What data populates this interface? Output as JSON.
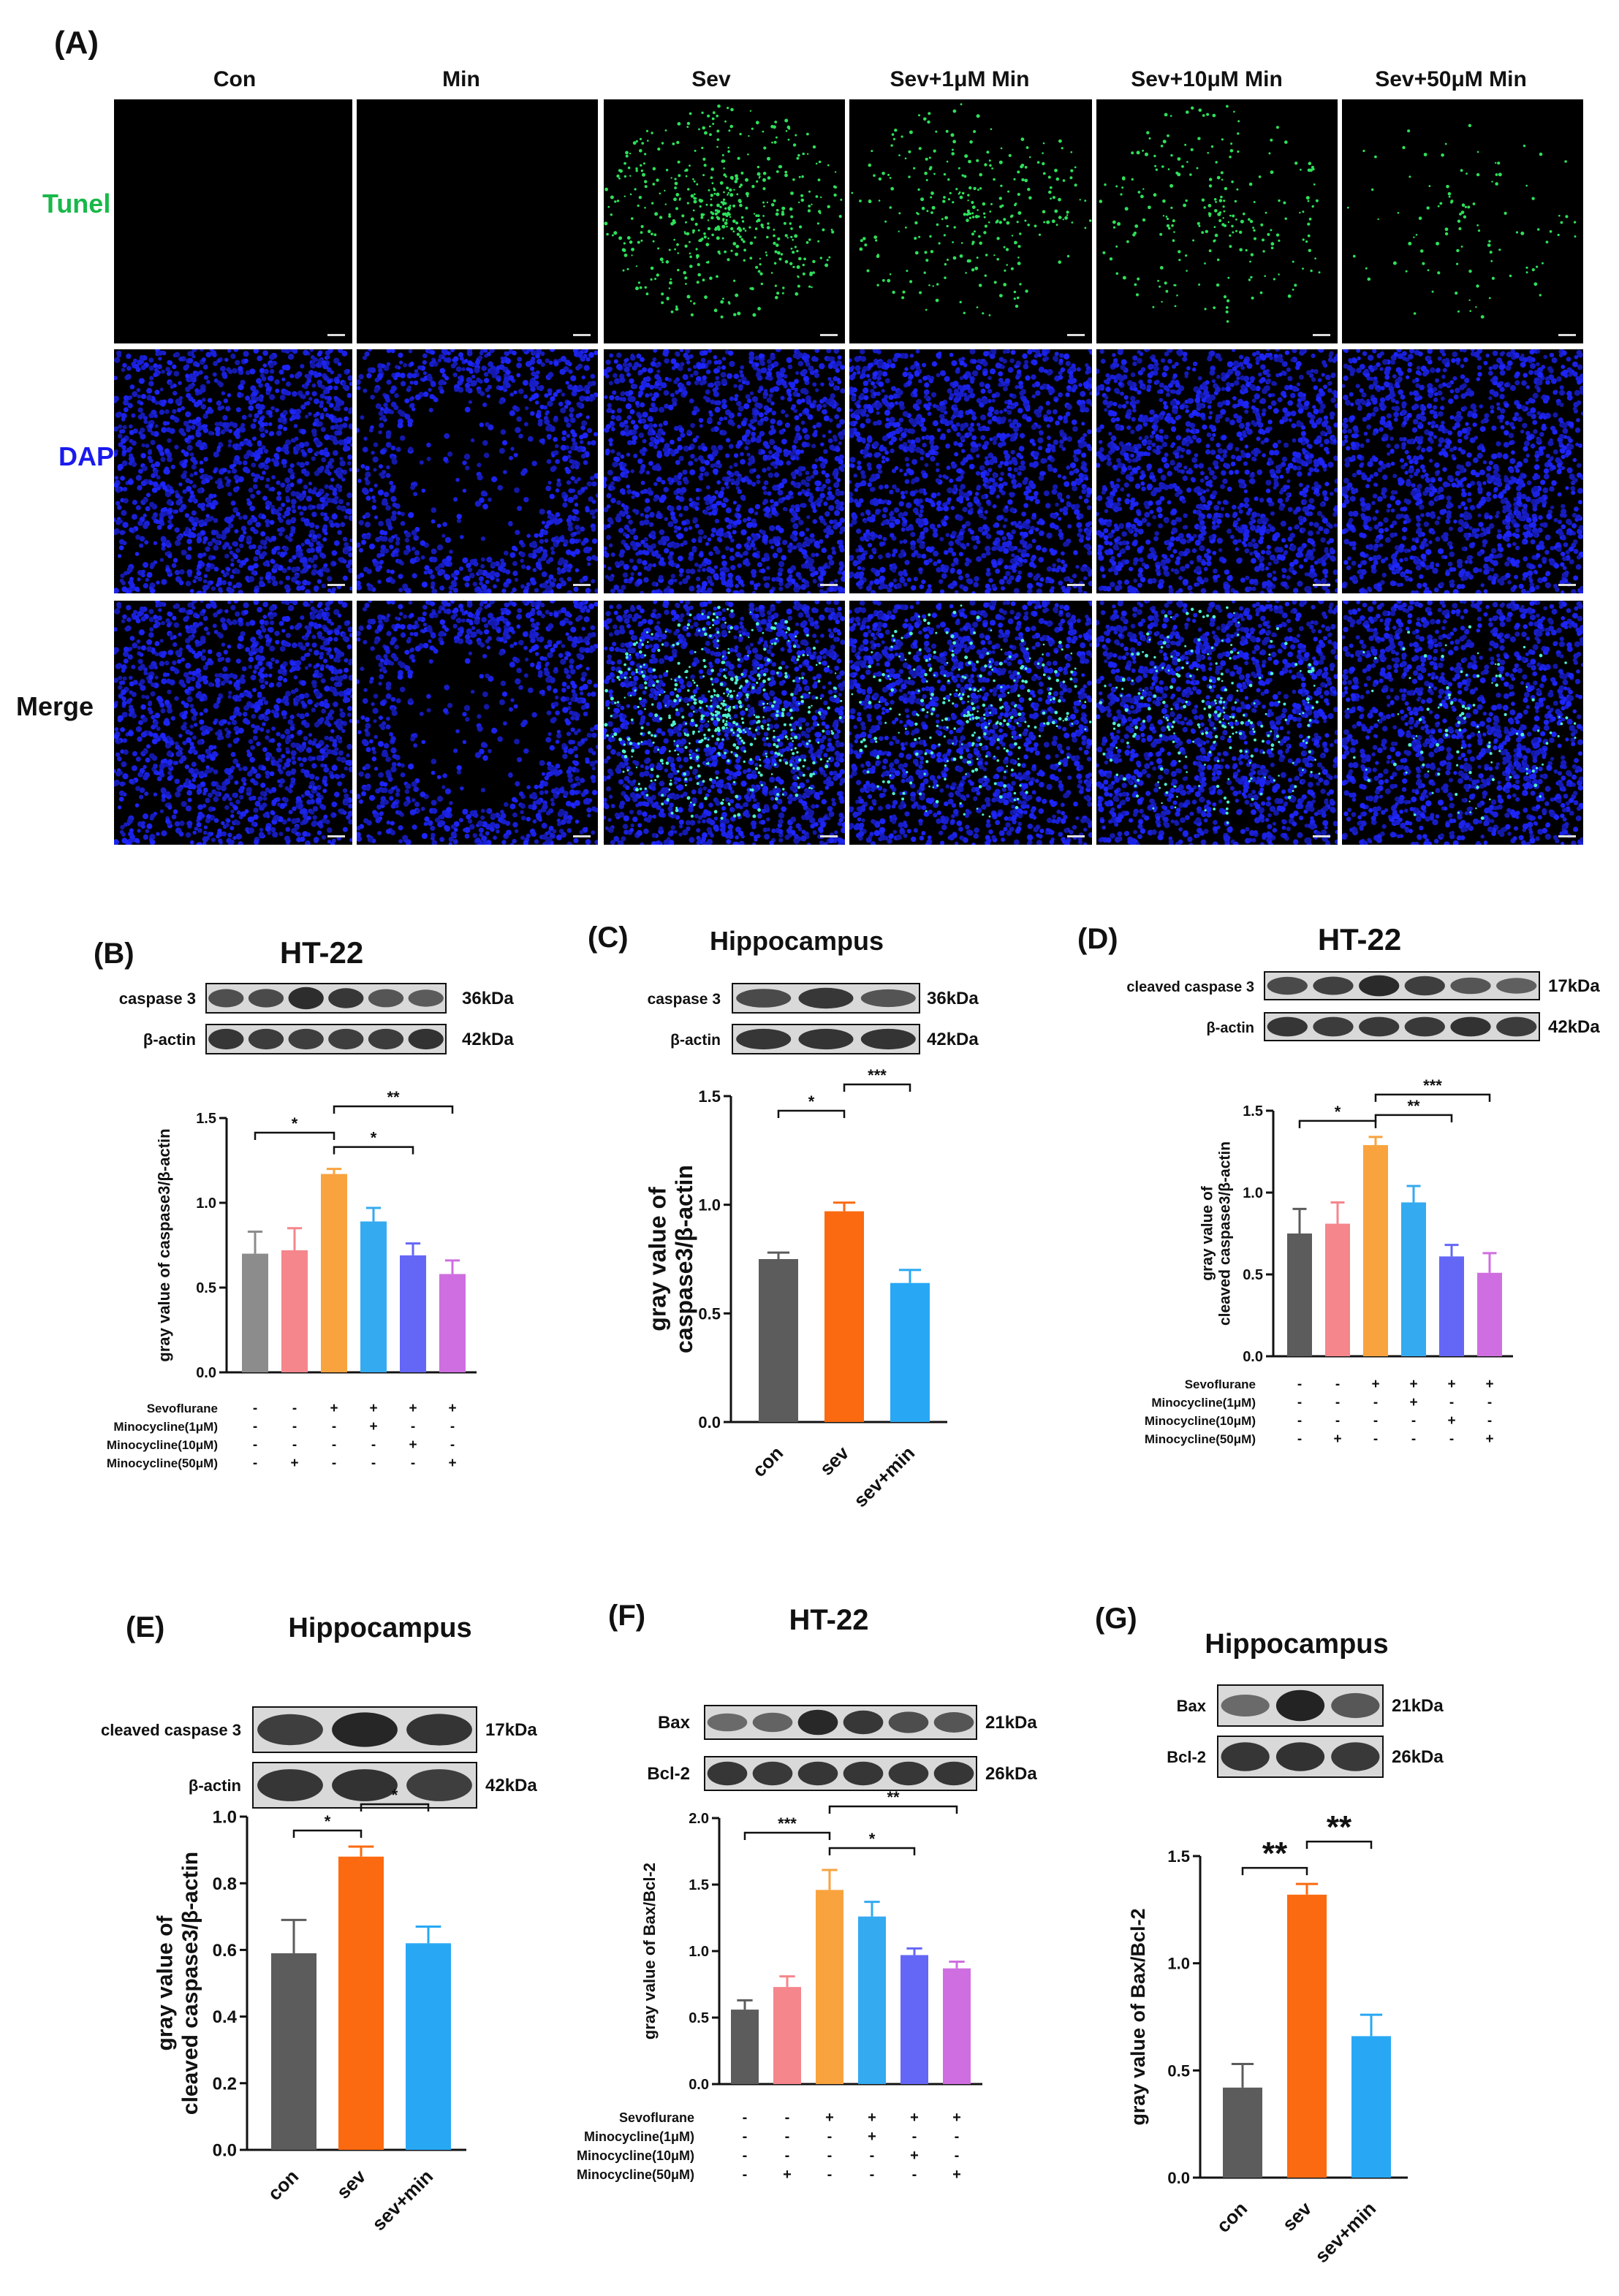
{
  "panel_A": {
    "letter": "(A)",
    "columns": [
      "Con",
      "Min",
      "Sev",
      "Sev+1μM Min",
      "Sev+10μM Min",
      "Sev+50μM Min"
    ],
    "rows": [
      {
        "label": "Tunel",
        "color": "#19b84a"
      },
      {
        "label": "DAPI",
        "color": "#1a1aee"
      },
      {
        "label": "Merge",
        "color": "#111111"
      }
    ],
    "tunel_density": [
      0,
      0,
      1.0,
      0.55,
      0.45,
      0.2
    ]
  },
  "chart_data": [
    {
      "id": "B",
      "type": "bar",
      "letter": "(B)",
      "title": "HT-22",
      "blot_rows": [
        {
          "label": "caspase 3",
          "kda": "36kDa"
        },
        {
          "label": "β-actin",
          "kda": "42kDa"
        }
      ],
      "ylabel": "gray value of caspase3/β-actin",
      "ylim": [
        0,
        1.5
      ],
      "yticks": [
        "0.0",
        "0.5",
        "1.0",
        "1.5"
      ],
      "values": [
        0.7,
        0.72,
        1.17,
        0.89,
        0.69,
        0.58
      ],
      "errors": [
        0.13,
        0.13,
        0.03,
        0.08,
        0.07,
        0.08
      ],
      "colors": [
        "#8c8c8c",
        "#f4868c",
        "#f8a33e",
        "#34aaf0",
        "#6467f6",
        "#cf6ee0"
      ],
      "sig": [
        {
          "from": 0,
          "to": 2,
          "label": "*"
        },
        {
          "from": 2,
          "to": 5,
          "label": "**"
        },
        {
          "from": 2,
          "to": 4,
          "label": "*"
        }
      ],
      "treatment_rows": [
        {
          "label": "Sevoflurane",
          "marks": [
            "-",
            "-",
            "+",
            "+",
            "+",
            "+"
          ]
        },
        {
          "label": "Minocycline(1μM)",
          "marks": [
            "-",
            "-",
            "-",
            "+",
            "-",
            "-"
          ]
        },
        {
          "label": "Minocycline(10μM)",
          "marks": [
            "-",
            "-",
            "-",
            "-",
            "+",
            "-"
          ]
        },
        {
          "label": "Minocycline(50μM)",
          "marks": [
            "-",
            "+",
            "-",
            "-",
            "-",
            "+"
          ]
        }
      ]
    },
    {
      "id": "C",
      "type": "bar",
      "letter": "(C)",
      "title": "Hippocampus",
      "blot_rows": [
        {
          "label": "caspase 3",
          "kda": "36kDa"
        },
        {
          "label": "β-actin",
          "kda": "42kDa"
        }
      ],
      "ylabel_lines": [
        "gray value of",
        "caspase3/β-actin"
      ],
      "ylim": [
        0,
        1.5
      ],
      "yticks": [
        "0.0",
        "0.5",
        "1.0",
        "1.5"
      ],
      "categories": [
        "con",
        "sev",
        "sev+min"
      ],
      "values": [
        0.75,
        0.97,
        0.64
      ],
      "errors": [
        0.03,
        0.04,
        0.06
      ],
      "colors": [
        "#5c5c5c",
        "#fb6a10",
        "#28a8f4"
      ],
      "sig": [
        {
          "from": 0,
          "to": 1,
          "label": "*"
        },
        {
          "from": 1,
          "to": 2,
          "label": "***"
        }
      ]
    },
    {
      "id": "D",
      "type": "bar",
      "letter": "(D)",
      "title": "HT-22",
      "blot_rows": [
        {
          "label": "cleaved caspase 3",
          "kda": "17kDa"
        },
        {
          "label": "β-actin",
          "kda": "42kDa"
        }
      ],
      "ylabel_lines": [
        "gray value of",
        "cleaved caspase3/β-actin"
      ],
      "ylim": [
        0,
        1.5
      ],
      "yticks": [
        "0.0",
        "0.5",
        "1.0",
        "1.5"
      ],
      "values": [
        0.75,
        0.81,
        1.29,
        0.94,
        0.61,
        0.51
      ],
      "errors": [
        0.15,
        0.13,
        0.05,
        0.1,
        0.07,
        0.12
      ],
      "colors": [
        "#5c5c5c",
        "#f4868c",
        "#f8a33e",
        "#34aaf0",
        "#6467f6",
        "#cf6ee0"
      ],
      "sig": [
        {
          "from": 0,
          "to": 2,
          "label": "*"
        },
        {
          "from": 2,
          "to": 5,
          "label": "***"
        },
        {
          "from": 2,
          "to": 4,
          "label": "**"
        }
      ],
      "treatment_rows": [
        {
          "label": "Sevoflurane",
          "marks": [
            "-",
            "-",
            "+",
            "+",
            "+",
            "+"
          ]
        },
        {
          "label": "Minocycline(1μM)",
          "marks": [
            "-",
            "-",
            "-",
            "+",
            "-",
            "-"
          ]
        },
        {
          "label": "Minocycline(10μM)",
          "marks": [
            "-",
            "-",
            "-",
            "-",
            "+",
            "-"
          ]
        },
        {
          "label": "Minocycline(50μM)",
          "marks": [
            "-",
            "+",
            "-",
            "-",
            "-",
            "+"
          ]
        }
      ]
    },
    {
      "id": "E",
      "type": "bar",
      "letter": "(E)",
      "title": "Hippocampus",
      "blot_rows": [
        {
          "label": "cleaved caspase 3",
          "kda": "17kDa"
        },
        {
          "label": "β-actin",
          "kda": "42kDa"
        }
      ],
      "ylabel_lines": [
        "gray value of",
        "cleaved caspase3/β-actin"
      ],
      "ylim": [
        0,
        1.0
      ],
      "yticks": [
        "0.0",
        "0.2",
        "0.4",
        "0.6",
        "0.8",
        "1.0"
      ],
      "categories": [
        "con",
        "sev",
        "sev+min"
      ],
      "values": [
        0.59,
        0.88,
        0.62
      ],
      "errors": [
        0.1,
        0.03,
        0.05
      ],
      "colors": [
        "#5c5c5c",
        "#fb6a10",
        "#28a8f4"
      ],
      "sig": [
        {
          "from": 0,
          "to": 1,
          "label": "*"
        },
        {
          "from": 1,
          "to": 2,
          "label": "*"
        }
      ]
    },
    {
      "id": "F",
      "type": "bar",
      "letter": "(F)",
      "title": "HT-22",
      "blot_rows": [
        {
          "label": "Bax",
          "kda": "21kDa"
        },
        {
          "label": "Bcl-2",
          "kda": "26kDa"
        }
      ],
      "ylabel": "gray value of Bax/Bcl-2",
      "ylim": [
        0,
        2.0
      ],
      "yticks": [
        "0.0",
        "0.5",
        "1.0",
        "1.5",
        "2.0"
      ],
      "values": [
        0.56,
        0.73,
        1.46,
        1.26,
        0.97,
        0.87
      ],
      "errors": [
        0.07,
        0.08,
        0.15,
        0.11,
        0.05,
        0.05
      ],
      "colors": [
        "#5c5c5c",
        "#f4868c",
        "#f8a33e",
        "#34aaf0",
        "#6467f6",
        "#cf6ee0"
      ],
      "sig": [
        {
          "from": 0,
          "to": 2,
          "label": "***"
        },
        {
          "from": 2,
          "to": 5,
          "label": "**"
        },
        {
          "from": 2,
          "to": 4,
          "label": "*"
        }
      ],
      "treatment_rows": [
        {
          "label": "Sevoflurane",
          "marks": [
            "-",
            "-",
            "+",
            "+",
            "+",
            "+"
          ]
        },
        {
          "label": "Minocycline(1μM)",
          "marks": [
            "-",
            "-",
            "-",
            "+",
            "-",
            "-"
          ]
        },
        {
          "label": "Minocycline(10μM)",
          "marks": [
            "-",
            "-",
            "-",
            "-",
            "+",
            "-"
          ]
        },
        {
          "label": "Minocycline(50μM)",
          "marks": [
            "-",
            "+",
            "-",
            "-",
            "-",
            "+"
          ]
        }
      ]
    },
    {
      "id": "G",
      "type": "bar",
      "letter": "(G)",
      "title": "Hippocampus",
      "blot_rows": [
        {
          "label": "Bax",
          "kda": "21kDa"
        },
        {
          "label": "Bcl-2",
          "kda": "26kDa"
        }
      ],
      "ylabel": "gray value of Bax/Bcl-2",
      "ylim": [
        0,
        1.5
      ],
      "yticks": [
        "0.0",
        "0.5",
        "1.0",
        "1.5"
      ],
      "categories": [
        "con",
        "sev",
        "sev+min"
      ],
      "values": [
        0.42,
        1.32,
        0.66
      ],
      "errors": [
        0.11,
        0.05,
        0.1
      ],
      "colors": [
        "#5c5c5c",
        "#fb6a10",
        "#28a8f4"
      ],
      "sig": [
        {
          "from": 0,
          "to": 1,
          "label": "**"
        },
        {
          "from": 1,
          "to": 2,
          "label": "**"
        }
      ]
    }
  ]
}
